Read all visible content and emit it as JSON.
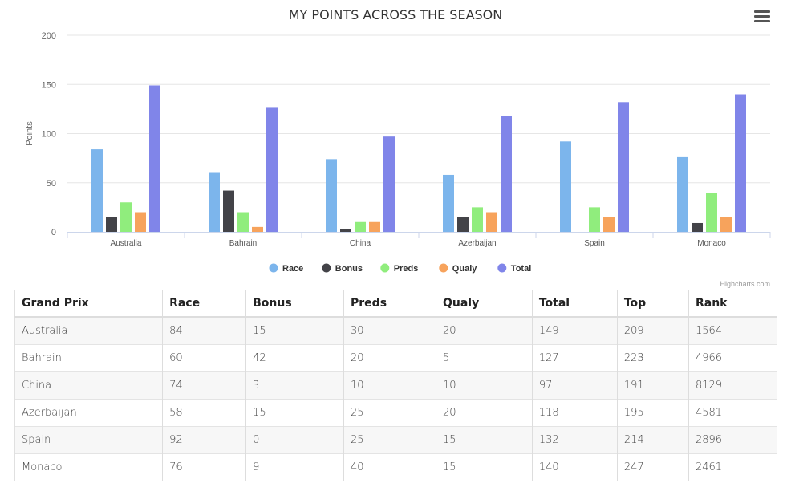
{
  "chart_data": {
    "type": "bar",
    "title": "MY POINTS ACROSS THE SEASON",
    "ylabel": "Points",
    "ylim": [
      0,
      200
    ],
    "yticks": [
      "0",
      "50",
      "100",
      "150",
      "200"
    ],
    "grid": true,
    "legend_position": "bottom-center",
    "categories": [
      "Australia",
      "Bahrain",
      "China",
      "Azerbaijan",
      "Spain",
      "Monaco"
    ],
    "series": [
      {
        "name": "Race",
        "color": "#7cb5ec",
        "values": [
          84,
          60,
          74,
          58,
          92,
          76
        ]
      },
      {
        "name": "Bonus",
        "color": "#434348",
        "values": [
          15,
          42,
          3,
          15,
          0,
          9
        ]
      },
      {
        "name": "Preds",
        "color": "#90ed7d",
        "values": [
          30,
          20,
          10,
          25,
          25,
          40
        ]
      },
      {
        "name": "Qualy",
        "color": "#f7a35c",
        "values": [
          20,
          5,
          10,
          20,
          15,
          15
        ]
      },
      {
        "name": "Total",
        "color": "#8085e9",
        "values": [
          149,
          127,
          97,
          118,
          132,
          140
        ]
      }
    ],
    "credits": "Highcharts.com"
  },
  "table": {
    "headers": [
      "Grand Prix",
      "Race",
      "Bonus",
      "Preds",
      "Qualy",
      "Total",
      "Top",
      "Rank"
    ],
    "rows": [
      [
        "Australia",
        "84",
        "15",
        "30",
        "20",
        "149",
        "209",
        "1564"
      ],
      [
        "Bahrain",
        "60",
        "42",
        "20",
        "5",
        "127",
        "223",
        "4966"
      ],
      [
        "China",
        "74",
        "3",
        "10",
        "10",
        "97",
        "191",
        "8129"
      ],
      [
        "Azerbaijan",
        "58",
        "15",
        "25",
        "20",
        "118",
        "195",
        "4581"
      ],
      [
        "Spain",
        "92",
        "0",
        "25",
        "15",
        "132",
        "214",
        "2896"
      ],
      [
        "Monaco",
        "76",
        "9",
        "40",
        "15",
        "140",
        "247",
        "2461"
      ]
    ]
  },
  "icons": {
    "menu": "hamburger-menu-icon"
  }
}
